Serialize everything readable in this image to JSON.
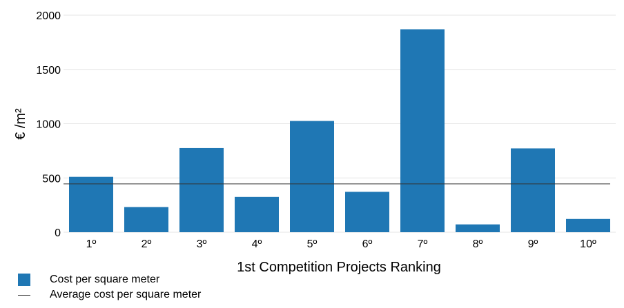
{
  "chart_data": {
    "type": "bar",
    "categories": [
      "1º",
      "2º",
      "3º",
      "4º",
      "5º",
      "6º",
      "7º",
      "8º",
      "9º",
      "10º"
    ],
    "series": [
      {
        "name": "Cost per square meter",
        "values": [
          510,
          232,
          775,
          325,
          1025,
          372,
          1870,
          72,
          772,
          122
        ],
        "color": "#1f77b4"
      }
    ],
    "reference_line": {
      "name": "Average cost per square meter",
      "value": 445,
      "color": "#333333"
    },
    "xlabel": "1st Competition Projects Ranking",
    "ylabel": "€ /m²",
    "ylim": [
      0,
      2000
    ],
    "yticks": [
      0,
      500,
      1000,
      1500,
      2000
    ],
    "grid": true,
    "legend_position": "bottom-left"
  }
}
